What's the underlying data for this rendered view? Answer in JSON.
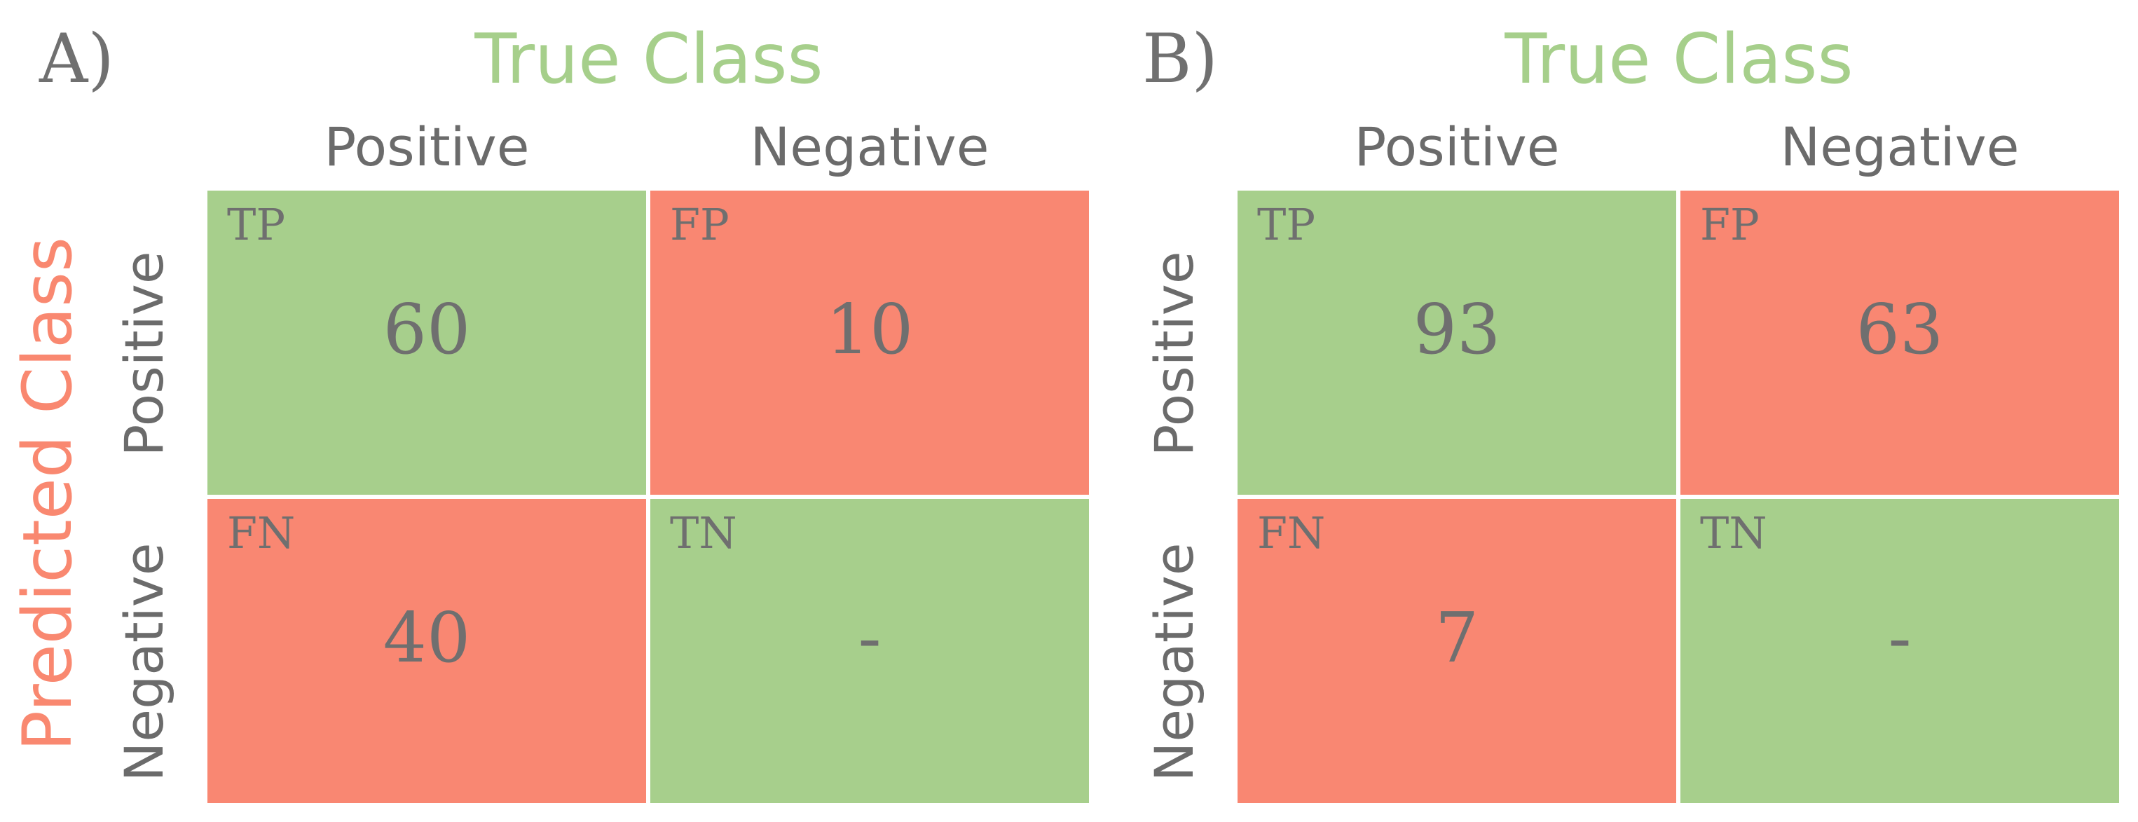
{
  "colors": {
    "correct_cell": "#a7cf8c",
    "error_cell": "#f98772",
    "true_class_label": "#a6cf8b",
    "predicted_class_label": "#f98870",
    "text_gray": "#6f6f6f"
  },
  "panel_a": {
    "label": "A)",
    "true_class": "True Class",
    "predicted_class": "Predicted Class",
    "col_positive": "Positive",
    "col_negative": "Negative",
    "row_positive": "Positive",
    "row_negative": "Negative",
    "cells": {
      "tp": {
        "tag": "TP",
        "value": "60"
      },
      "fp": {
        "tag": "FP",
        "value": "10"
      },
      "fn": {
        "tag": "FN",
        "value": "40"
      },
      "tn": {
        "tag": "TN",
        "value": "-"
      }
    }
  },
  "panel_b": {
    "label": "B)",
    "true_class": "True Class",
    "col_positive": "Positive",
    "col_negative": "Negative",
    "row_positive": "Positive",
    "row_negative": "Negative",
    "cells": {
      "tp": {
        "tag": "TP",
        "value": "93"
      },
      "fp": {
        "tag": "FP",
        "value": "63"
      },
      "fn": {
        "tag": "FN",
        "value": "7"
      },
      "tn": {
        "tag": "TN",
        "value": "-"
      }
    }
  }
}
